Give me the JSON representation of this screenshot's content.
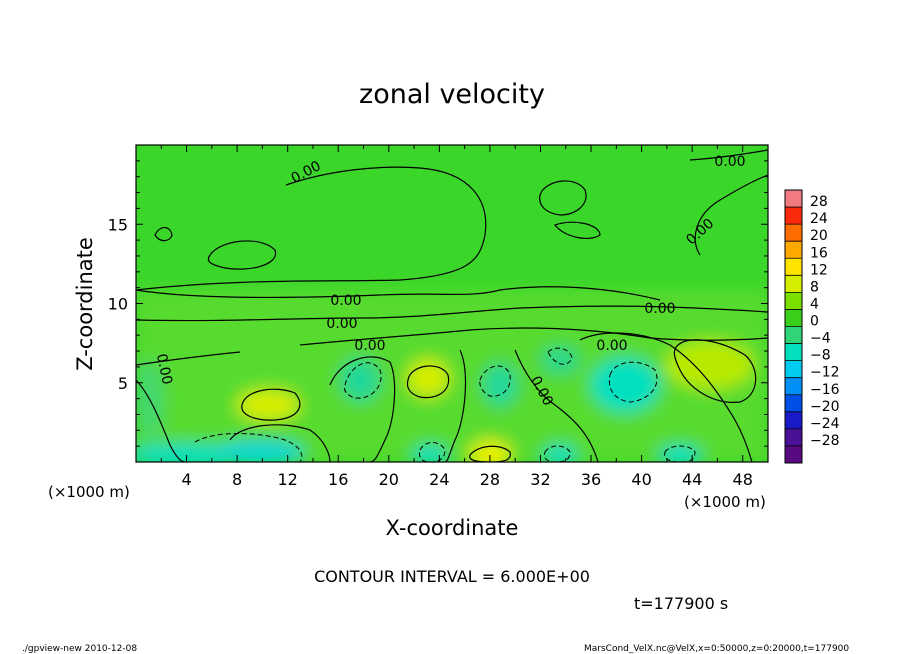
{
  "chart_data": {
    "type": "heatmap",
    "title": "zonal velocity",
    "xlabel": "X-coordinate",
    "ylabel": "Z-coordinate",
    "x_unit_left": "(×1000 m)",
    "x_unit_right": "(×1000 m)",
    "xlim": [
      0,
      50
    ],
    "ylim": [
      0,
      20
    ],
    "xticks": [
      "4",
      "8",
      "12",
      "16",
      "20",
      "24",
      "28",
      "32",
      "36",
      "40",
      "44",
      "48"
    ],
    "yticks": [
      "5",
      "10",
      "15"
    ],
    "colorbar_levels": [
      "28",
      "24",
      "20",
      "16",
      "12",
      "8",
      "4",
      "0",
      "−4",
      "−8",
      "−12",
      "−16",
      "−20",
      "−24",
      "−28"
    ],
    "colorbar_colors": [
      "#f27b82",
      "#fb2a0c",
      "#ff6c00",
      "#ffa800",
      "#ffe400",
      "#d4ed00",
      "#7be000",
      "#3acf1a",
      "#2fd576",
      "#00e0c0",
      "#00ccf0",
      "#0090f8",
      "#0050e8",
      "#1a1ac8",
      "#4a1098"
    ],
    "contour_labels": [
      "0.00",
      "0.00",
      "0.00",
      "0.00",
      "0.00",
      "0.00",
      "0.00",
      "0.00",
      "0.00",
      "0.00"
    ],
    "contour_interval_text": "CONTOUR INTERVAL = 6.000E+00",
    "time_text": "t=177900 s",
    "background_color": "#3bd62a"
  },
  "footer": {
    "left": "./gpview-new  2010-12-08",
    "right": "MarsCond_VelX.nc@VelX,x=0:50000,z=0:20000,t=177900"
  }
}
